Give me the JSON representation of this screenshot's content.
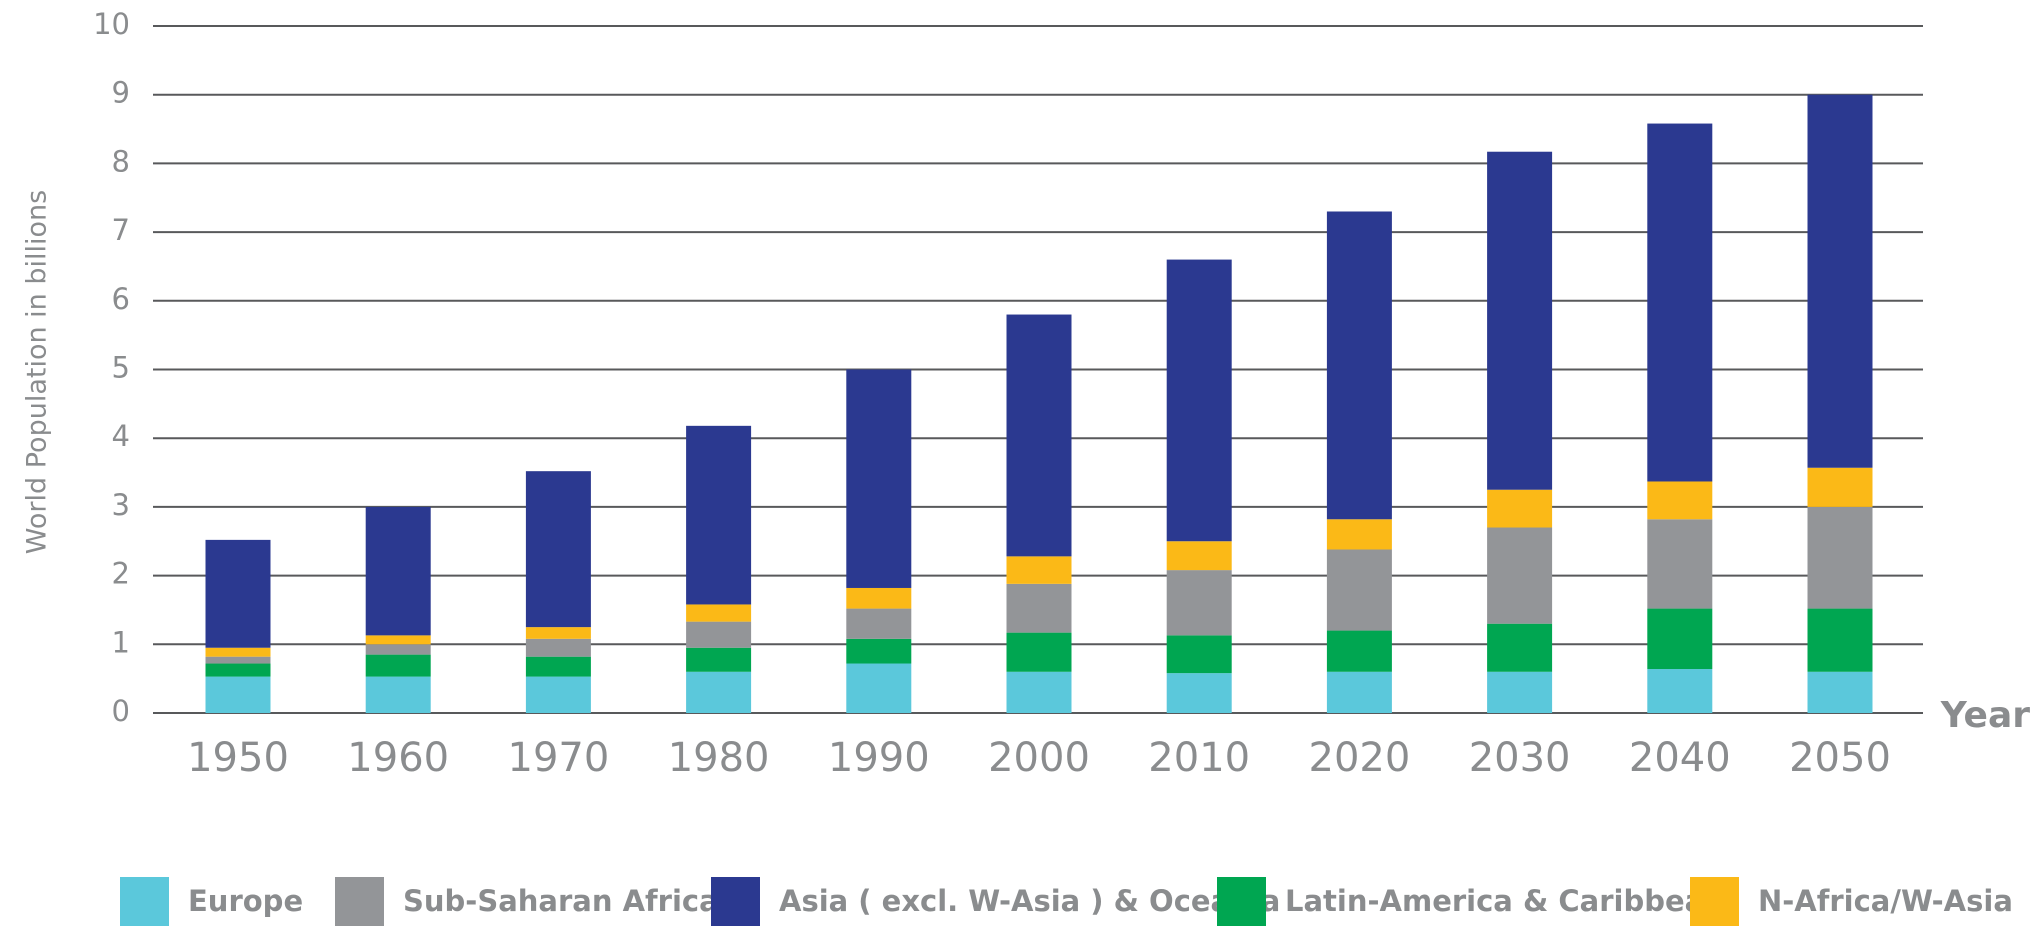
{
  "chart_data": {
    "type": "stacked_bar",
    "y_label": "World Population in billions",
    "x_label": "Year",
    "categories": [
      "1950",
      "1960",
      "1970",
      "1980",
      "1990",
      "2000",
      "2010",
      "2020",
      "2030",
      "2040",
      "2050"
    ],
    "series": [
      {
        "name": "Europe",
        "color": "#5bc8db",
        "values": [
          0.53,
          0.53,
          0.53,
          0.6,
          0.72,
          0.6,
          0.58,
          0.6,
          0.6,
          0.64,
          0.6
        ]
      },
      {
        "name": "Sub-Saharan Africa",
        "color": "#939598",
        "values": [
          0.1,
          0.15,
          0.26,
          0.38,
          0.44,
          0.71,
          0.95,
          1.18,
          1.4,
          1.3,
          1.48
        ]
      },
      {
        "name": "Asia ( excl. W-Asia ) & Oceania",
        "color": "#2b3990",
        "values": [
          1.57,
          1.87,
          2.27,
          2.6,
          3.18,
          3.52,
          4.1,
          4.48,
          4.92,
          5.21,
          5.43
        ]
      },
      {
        "name": "Latin-America & Caribbean",
        "color": "#00a651",
        "values": [
          0.19,
          0.32,
          0.29,
          0.35,
          0.36,
          0.57,
          0.55,
          0.6,
          0.7,
          0.88,
          0.92
        ]
      },
      {
        "name": "N-Africa/W-Asia",
        "color": "#fbb917",
        "values": [
          0.13,
          0.13,
          0.17,
          0.25,
          0.3,
          0.4,
          0.42,
          0.44,
          0.55,
          0.55,
          0.57
        ]
      }
    ],
    "ylim": [
      0,
      10
    ],
    "yticks": [
      0,
      1,
      2,
      3,
      4,
      5,
      6,
      7,
      8,
      9,
      10
    ],
    "grid": true
  }
}
